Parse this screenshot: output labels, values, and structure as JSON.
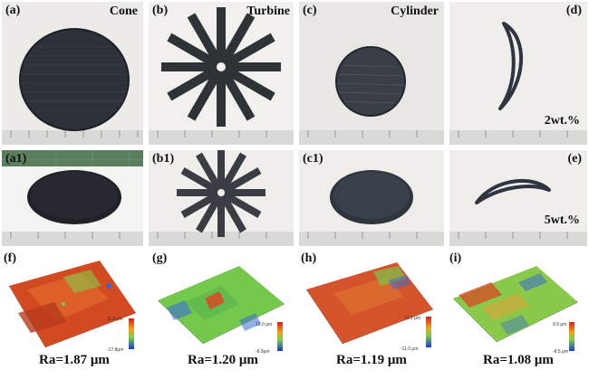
{
  "panels": {
    "a": {
      "label": "(a)",
      "title": "Cone"
    },
    "b": {
      "label": "(b)",
      "title": "Turbine"
    },
    "c": {
      "label": "(c)",
      "title": "Cylinder"
    },
    "d": {
      "label": "(d)",
      "note": "2wt.%"
    },
    "a1": {
      "label": "(a1)"
    },
    "b1": {
      "label": "(b1)"
    },
    "c1": {
      "label": "(c1)"
    },
    "e": {
      "label": "(e)",
      "note": "5wt.%"
    }
  },
  "surfaces": [
    {
      "label": "(f)",
      "ra": "Ra=1.87 μm",
      "cb_max": "11.8 μm",
      "cb_min": "-17.8μm"
    },
    {
      "label": "(g)",
      "ra": "Ra=1.20 μm",
      "cb_max": "12.0 μm",
      "cb_min": "-8.9μm"
    },
    {
      "label": "(h)",
      "ra": "Ra=1.19 μm",
      "cb_max": "13.1 μm",
      "cb_min": "-11.0 μm"
    },
    {
      "label": "(i)",
      "ra": "Ra=1.08 μm",
      "cb_max": "9.9 μm",
      "cb_min": "-8.5 μm"
    }
  ],
  "colors": {
    "sample": "#2a2f36",
    "paper": "#e9e9e6",
    "ruler": "#d9d9d9",
    "red": "#d23a1e",
    "green": "#7fcf4a",
    "blue": "#2a5bd8"
  }
}
